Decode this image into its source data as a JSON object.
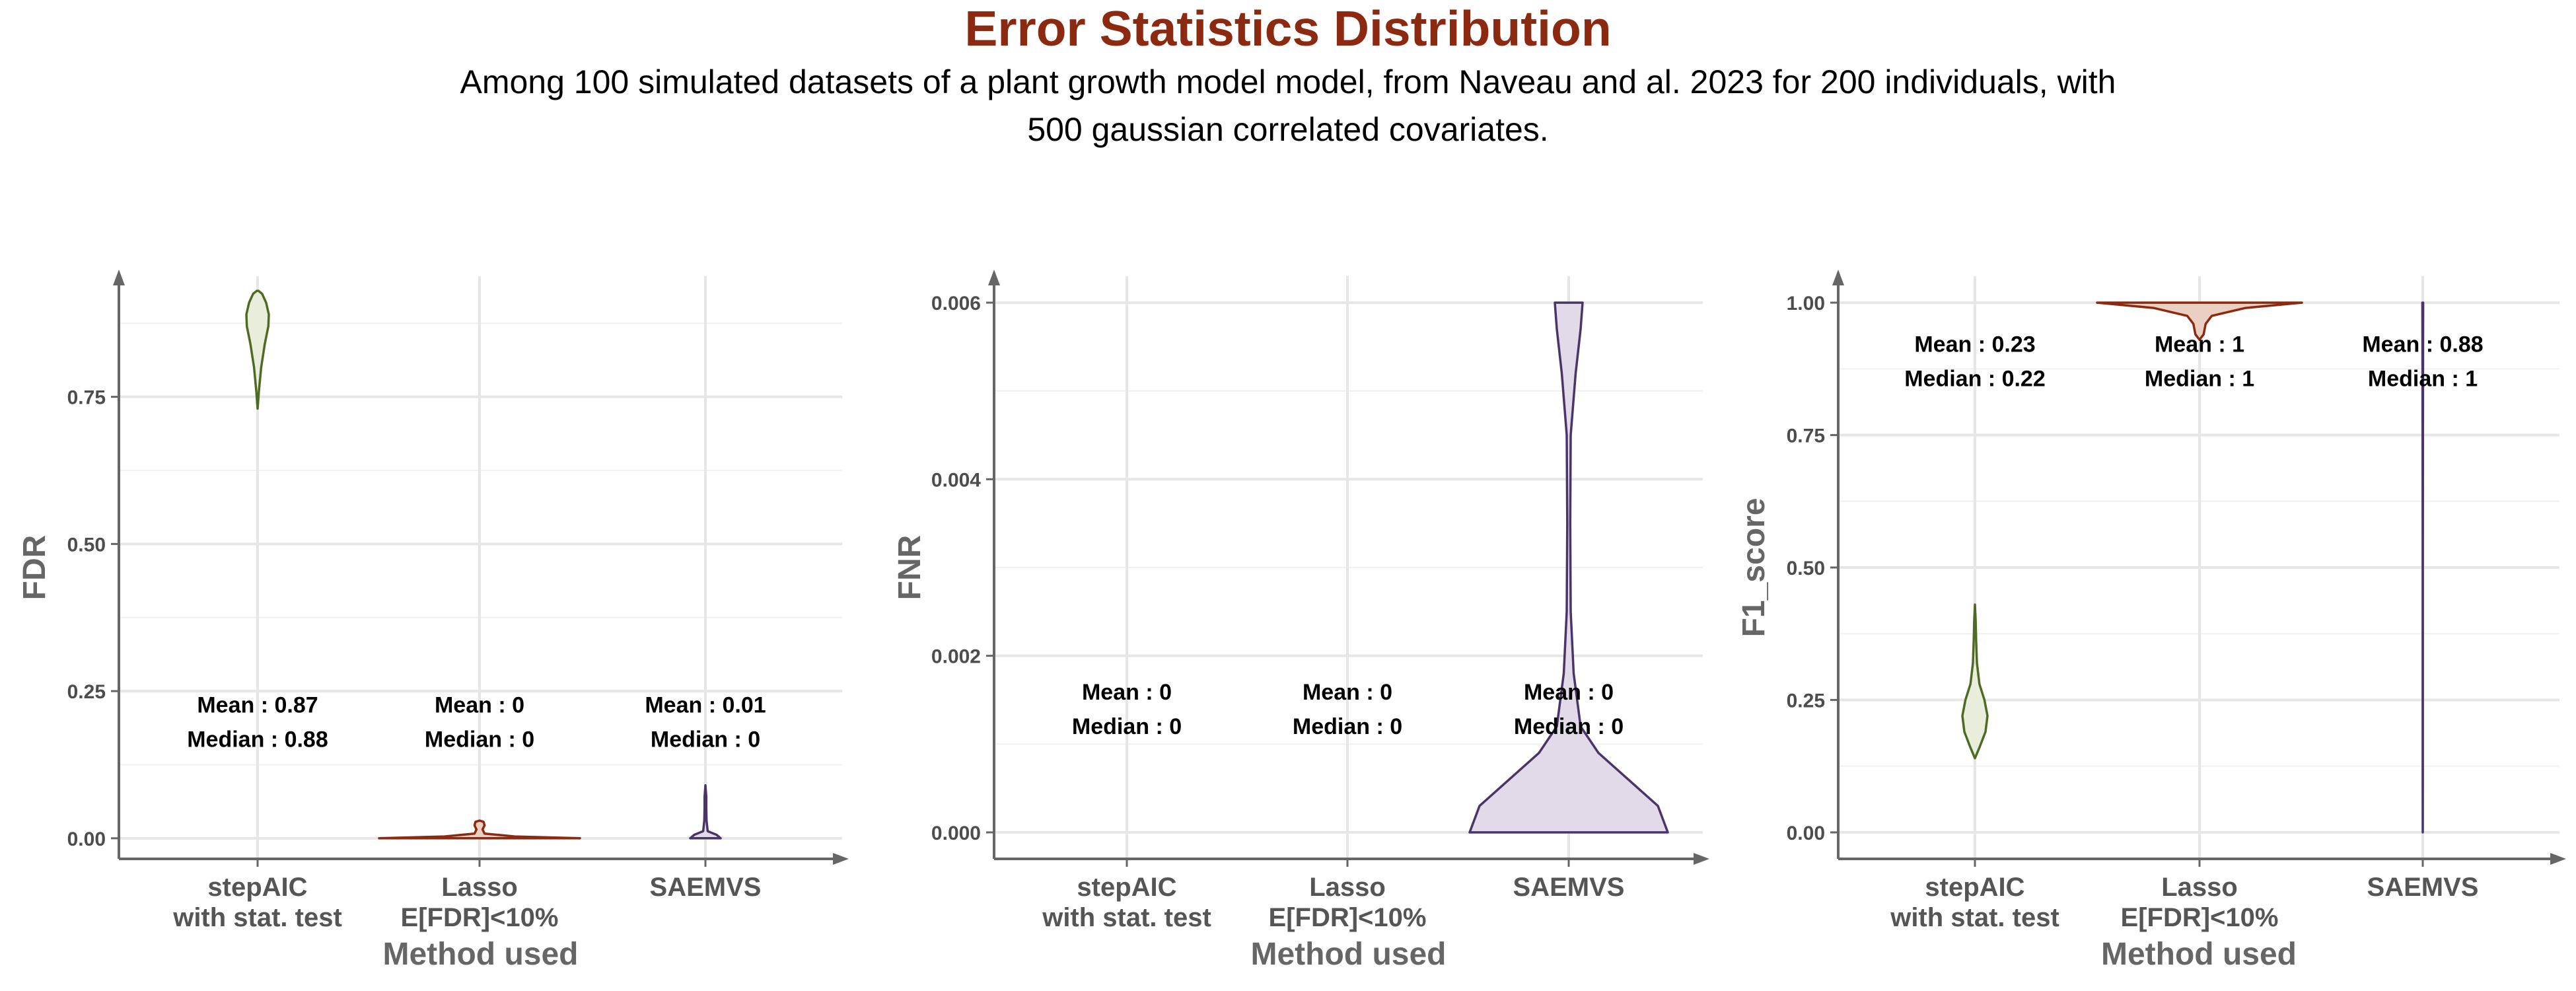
{
  "title": "Error Statistics Distribution",
  "subtitle": "Among 100 simulated datasets of a plant growth model model, from Naveau and al. 2023 for 200 individuals, with 500 gaussian correlated covariates.",
  "colors": {
    "title": "#8B2A10",
    "stepAIC": "#4E6B24",
    "stepAIC_fill": "#E8EEDB",
    "lasso": "#8B2A10",
    "lasso_fill": "#EBCFC3",
    "saemvs": "#4A3566",
    "saemvs_fill": "#E2DAE8",
    "axis": "#666666",
    "grid": "#E6E6E6"
  },
  "chart_data": [
    {
      "type": "violin",
      "ylabel": "FDR",
      "xlabel": "Method used",
      "categories": [
        "stepAIC\nwith stat. test",
        "Lasso\nE[FDR]<10%",
        "SAEMVS"
      ],
      "ylim": [
        -0.035,
        0.955
      ],
      "yticks": [
        0.0,
        0.25,
        0.5,
        0.75
      ],
      "ytick_labels": [
        "0.00",
        "0.25",
        "0.50",
        "0.75"
      ],
      "violins": [
        {
          "min": 0.73,
          "max": 0.93,
          "profile": [
            [
              0.73,
              0.0
            ],
            [
              0.76,
              0.06
            ],
            [
              0.8,
              0.16
            ],
            [
              0.84,
              0.32
            ],
            [
              0.87,
              0.48
            ],
            [
              0.89,
              0.5
            ],
            [
              0.91,
              0.38
            ],
            [
              0.925,
              0.2
            ],
            [
              0.93,
              0.04
            ]
          ]
        },
        {
          "min": 0.0,
          "max": 0.03,
          "profile": [
            [
              0.0,
              1.0
            ],
            [
              0.003,
              0.35
            ],
            [
              0.008,
              0.05
            ],
            [
              0.015,
              0.03
            ],
            [
              0.022,
              0.05
            ],
            [
              0.028,
              0.04
            ],
            [
              0.03,
              0.0
            ]
          ]
        },
        {
          "min": 0.0,
          "max": 0.09,
          "profile": [
            [
              0.0,
              0.55
            ],
            [
              0.006,
              0.4
            ],
            [
              0.012,
              0.08
            ],
            [
              0.03,
              0.04
            ],
            [
              0.05,
              0.03
            ],
            [
              0.07,
              0.03
            ],
            [
              0.09,
              0.0
            ]
          ]
        }
      ],
      "annotations": [
        {
          "mean": "Mean : 0.87",
          "median": "Median : 0.88"
        },
        {
          "mean": "Mean : 0",
          "median": "Median : 0"
        },
        {
          "mean": "Mean : 0.01",
          "median": "Median : 0"
        }
      ],
      "annotation_y": 0.18,
      "grid": true
    },
    {
      "type": "violin",
      "ylabel": "FNR",
      "xlabel": "Method used",
      "categories": [
        "stepAIC\nwith stat. test",
        "Lasso\nE[FDR]<10%",
        "SAEMVS"
      ],
      "ylim": [
        -0.0003,
        0.0063
      ],
      "yticks": [
        0.0,
        0.002,
        0.004,
        0.006
      ],
      "ytick_labels": [
        "0.000",
        "0.002",
        "0.004",
        "0.006"
      ],
      "violins": [
        null,
        null,
        {
          "min": 0.0,
          "max": 0.006,
          "profile": [
            [
              0.0,
              1.0
            ],
            [
              0.0003,
              0.9
            ],
            [
              0.0006,
              0.6
            ],
            [
              0.0009,
              0.3
            ],
            [
              0.0012,
              0.12
            ],
            [
              0.0018,
              0.05
            ],
            [
              0.0025,
              0.02
            ],
            [
              0.0035,
              0.015
            ],
            [
              0.0045,
              0.02
            ],
            [
              0.0052,
              0.07
            ],
            [
              0.0057,
              0.12
            ],
            [
              0.006,
              0.14
            ]
          ]
        }
      ],
      "annotations": [
        {
          "mean": "Mean : 0",
          "median": "Median : 0"
        },
        {
          "mean": "Mean : 0",
          "median": "Median : 0"
        },
        {
          "mean": "Mean : 0",
          "median": "Median : 0"
        }
      ],
      "annotation_y": 0.00128,
      "grid": true
    },
    {
      "type": "violin",
      "ylabel": "F1_score",
      "xlabel": "Method used",
      "categories": [
        "stepAIC\nwith stat. test",
        "Lasso\nE[FDR]<10%",
        "SAEMVS"
      ],
      "ylim": [
        -0.05,
        1.05
      ],
      "yticks": [
        0.0,
        0.25,
        0.5,
        0.75,
        1.0
      ],
      "ytick_labels": [
        "0.00",
        "0.25",
        "0.50",
        "0.75",
        "1.00"
      ],
      "violins": [
        {
          "min": 0.14,
          "max": 0.43,
          "profile": [
            [
              0.14,
              0.0
            ],
            [
              0.16,
              0.18
            ],
            [
              0.19,
              0.42
            ],
            [
              0.22,
              0.5
            ],
            [
              0.25,
              0.38
            ],
            [
              0.28,
              0.18
            ],
            [
              0.32,
              0.08
            ],
            [
              0.36,
              0.05
            ],
            [
              0.4,
              0.03
            ],
            [
              0.43,
              0.0
            ]
          ]
        },
        {
          "min": 0.93,
          "max": 1.0,
          "profile": [
            [
              0.93,
              0.0
            ],
            [
              0.94,
              0.04
            ],
            [
              0.96,
              0.06
            ],
            [
              0.975,
              0.12
            ],
            [
              0.99,
              0.45
            ],
            [
              1.0,
              1.0
            ]
          ]
        },
        {
          "min": 0.0,
          "max": 1.0,
          "profile": [
            [
              0.0,
              0.0
            ],
            [
              0.1,
              0.01
            ],
            [
              0.3,
              0.01
            ],
            [
              0.5,
              0.01
            ],
            [
              0.65,
              0.02
            ],
            [
              0.75,
              0.04
            ],
            [
              0.85,
              0.05
            ],
            [
              0.95,
              0.06
            ],
            [
              1.0,
              0.07
            ]
          ]
        }
      ],
      "annotations": [
        {
          "mean": "Mean : 0.23",
          "median": "Median : 0.22"
        },
        {
          "mean": "Mean : 1",
          "median": "Median : 1"
        },
        {
          "mean": "Mean : 0.88",
          "median": "Median : 1"
        }
      ],
      "annotation_y": 0.87,
      "grid": true
    }
  ]
}
